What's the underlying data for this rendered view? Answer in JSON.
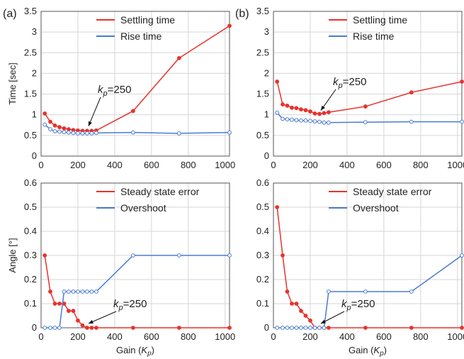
{
  "colors": {
    "red": "#e8322d",
    "blue": "#4a7bd0",
    "axis": "#555555",
    "grid": "#d6d6d6"
  },
  "chart_data": [
    {
      "type": "line",
      "panel": "(a)",
      "ylabel": "Time [sec]",
      "xlabel": "",
      "xlim": [
        0,
        1024
      ],
      "ylim": [
        0,
        3.5
      ],
      "xticks": [
        "0",
        "200",
        "400",
        "600",
        "800",
        "1000"
      ],
      "yticks": [
        "0",
        "0.5",
        "1",
        "1.5",
        "2",
        "2.5",
        "3",
        "3.5"
      ],
      "legend_position": "top-right",
      "grid": true,
      "annotation": {
        "text_pre": "k",
        "text_sub": "p",
        "text_post": "=250",
        "x": 250,
        "y": 0.62
      },
      "series": [
        {
          "name": "Settling time",
          "color": "red",
          "x": [
            20,
            50,
            75,
            100,
            125,
            150,
            175,
            200,
            225,
            250,
            275,
            300,
            500,
            750,
            1024
          ],
          "y": [
            1.03,
            0.83,
            0.74,
            0.7,
            0.67,
            0.65,
            0.63,
            0.62,
            0.61,
            0.61,
            0.61,
            0.62,
            1.09,
            2.37,
            3.15
          ]
        },
        {
          "name": "Rise time",
          "color": "blue",
          "x": [
            20,
            50,
            75,
            100,
            125,
            150,
            175,
            200,
            225,
            250,
            275,
            300,
            500,
            750,
            1024
          ],
          "y": [
            0.76,
            0.65,
            0.6,
            0.59,
            0.58,
            0.57,
            0.56,
            0.55,
            0.55,
            0.55,
            0.55,
            0.56,
            0.57,
            0.55,
            0.57
          ]
        }
      ]
    },
    {
      "type": "line",
      "panel": "(b)",
      "ylabel": "",
      "xlabel": "",
      "xlim": [
        0,
        1024
      ],
      "ylim": [
        0,
        3.5
      ],
      "xticks": [
        "0",
        "200",
        "400",
        "600",
        "800",
        "1000"
      ],
      "yticks": [
        "0",
        "0.5",
        "1",
        "1.5",
        "2",
        "2.5",
        "3",
        "3.5"
      ],
      "legend_position": "top-right",
      "grid": true,
      "annotation": {
        "text_pre": "k",
        "text_sub": "p",
        "text_post": "=250",
        "x": 250,
        "y": 1.0
      },
      "series": [
        {
          "name": "Settling time",
          "color": "red",
          "x": [
            20,
            50,
            75,
            100,
            125,
            150,
            175,
            200,
            225,
            250,
            275,
            300,
            500,
            750,
            1024
          ],
          "y": [
            1.8,
            1.25,
            1.22,
            1.17,
            1.16,
            1.13,
            1.11,
            1.08,
            1.03,
            1.02,
            1.04,
            1.06,
            1.2,
            1.54,
            1.8
          ]
        },
        {
          "name": "Rise time",
          "color": "blue",
          "x": [
            20,
            50,
            75,
            100,
            125,
            150,
            175,
            200,
            225,
            250,
            275,
            300,
            500,
            750,
            1024
          ],
          "y": [
            1.05,
            0.9,
            0.89,
            0.88,
            0.87,
            0.86,
            0.86,
            0.85,
            0.84,
            0.83,
            0.81,
            0.81,
            0.82,
            0.83,
            0.83
          ]
        }
      ]
    },
    {
      "type": "line",
      "panel": "",
      "ylabel": "Angle [°]",
      "xlabel_pre": "Gain (",
      "xlabel_k": "K",
      "xlabel_sub": "p",
      "xlabel_post": ")",
      "xlim": [
        0,
        1024
      ],
      "ylim": [
        0,
        0.6
      ],
      "xticks": [
        "0",
        "200",
        "400",
        "600",
        "800",
        "1000"
      ],
      "yticks": [
        "0",
        "0.1",
        "0.2",
        "0.3",
        "0.4",
        "0.5",
        "0.6"
      ],
      "legend_position": "top-right",
      "grid": true,
      "annotation": {
        "text_pre": "k",
        "text_sub": "p",
        "text_post": "=250",
        "x": 250,
        "y": 0.0
      },
      "series": [
        {
          "name": "Steady state error",
          "color": "red",
          "x": [
            20,
            50,
            75,
            100,
            125,
            150,
            175,
            200,
            225,
            250,
            275,
            300,
            500,
            750,
            1024
          ],
          "y": [
            0.3,
            0.15,
            0.1,
            0.1,
            0.1,
            0.07,
            0.07,
            0.03,
            0.01,
            0.0,
            0.0,
            0.0,
            0.0,
            0.0,
            0.0
          ]
        },
        {
          "name": "Overshoot",
          "color": "blue",
          "x": [
            20,
            50,
            75,
            100,
            125,
            150,
            175,
            200,
            225,
            250,
            275,
            300,
            500,
            750,
            1024
          ],
          "y": [
            0.0,
            0.0,
            0.0,
            0.0,
            0.15,
            0.15,
            0.15,
            0.15,
            0.15,
            0.15,
            0.15,
            0.15,
            0.3,
            0.3,
            0.3
          ]
        }
      ]
    },
    {
      "type": "line",
      "panel": "",
      "ylabel": "",
      "xlabel_pre": "Gain (",
      "xlabel_k": "K",
      "xlabel_sub": "p",
      "xlabel_post": ")",
      "xlim": [
        0,
        1024
      ],
      "ylim": [
        0,
        0.6
      ],
      "xticks": [
        "0",
        "200",
        "400",
        "600",
        "800",
        "1000"
      ],
      "yticks": [
        "0",
        "0.1",
        "0.2",
        "0.3",
        "0.4",
        "0.5",
        "0.6"
      ],
      "legend_position": "top-right",
      "grid": true,
      "annotation": {
        "text_pre": "k",
        "text_sub": "p",
        "text_post": "=250",
        "x": 250,
        "y": 0.0
      },
      "series": [
        {
          "name": "Steady state error",
          "color": "red",
          "x": [
            20,
            50,
            75,
            100,
            125,
            150,
            175,
            200,
            225,
            250,
            275,
            300,
            500,
            750,
            1024
          ],
          "y": [
            0.5,
            0.3,
            0.15,
            0.1,
            0.1,
            0.07,
            0.05,
            0.03,
            0.0,
            0.0,
            0.0,
            0.0,
            0.0,
            0.0,
            0.0
          ]
        },
        {
          "name": "Overshoot",
          "color": "blue",
          "x": [
            20,
            50,
            75,
            100,
            125,
            150,
            175,
            200,
            225,
            250,
            275,
            300,
            500,
            750,
            1024
          ],
          "y": [
            0.0,
            0.0,
            0.0,
            0.0,
            0.0,
            0.0,
            0.0,
            0.0,
            0.0,
            0.0,
            0.0,
            0.15,
            0.15,
            0.15,
            0.3
          ]
        }
      ]
    }
  ]
}
